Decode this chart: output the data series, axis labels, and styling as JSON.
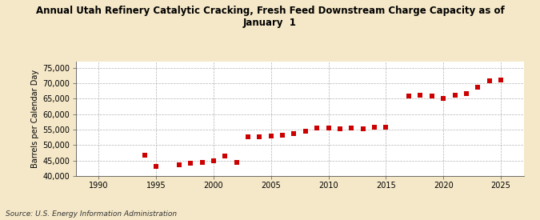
{
  "title": "Annual Utah Refinery Catalytic Cracking, Fresh Feed Downstream Charge Capacity as of\nJanuary  1",
  "ylabel": "Barrels per Calendar Day",
  "source": "Source: U.S. Energy Information Administration",
  "background_color": "#f5e8c8",
  "plot_bg_color": "#ffffff",
  "grid_color": "#aaaaaa",
  "marker_color": "#cc0000",
  "xlim": [
    1988,
    2027
  ],
  "ylim": [
    40000,
    77000
  ],
  "yticks": [
    40000,
    45000,
    50000,
    55000,
    60000,
    65000,
    70000,
    75000
  ],
  "xticks": [
    1990,
    1995,
    2000,
    2005,
    2010,
    2015,
    2020,
    2025
  ],
  "years": [
    1994,
    1995,
    1997,
    1998,
    1999,
    2000,
    2001,
    2002,
    2003,
    2004,
    2005,
    2006,
    2007,
    2008,
    2009,
    2010,
    2011,
    2012,
    2013,
    2014,
    2015,
    2017,
    2018,
    2019,
    2020,
    2021,
    2022,
    2023,
    2024,
    2025
  ],
  "values": [
    46800,
    43200,
    43700,
    44200,
    44500,
    45000,
    46500,
    44500,
    52700,
    52700,
    52900,
    53200,
    53800,
    54500,
    55500,
    55500,
    55300,
    55500,
    55300,
    55800,
    55700,
    65900,
    66200,
    66000,
    65000,
    66200,
    66600,
    68700,
    70700,
    71100
  ]
}
